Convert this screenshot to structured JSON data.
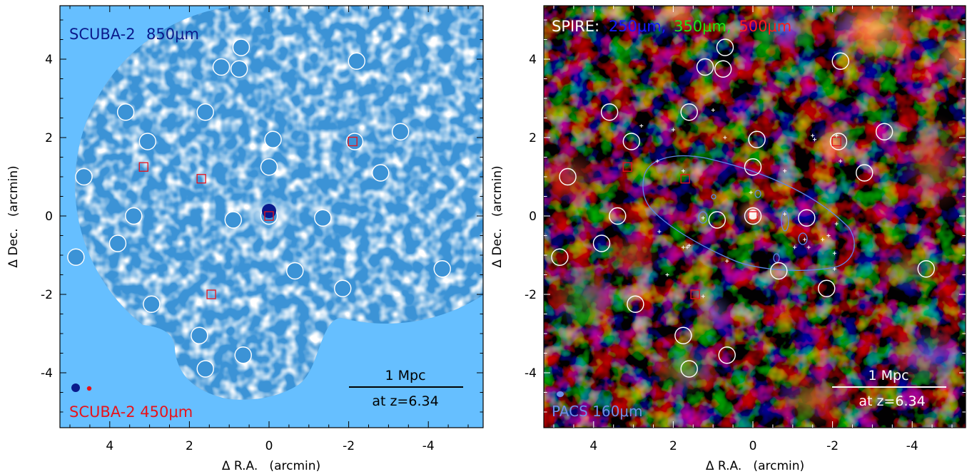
{
  "left_panel": {
    "title_instrument": "SCUBA-2",
    "title_band": "850μm",
    "bottom_label": "SCUBA-2 450μm",
    "scale_bar_top": "1 Mpc",
    "scale_bar_bottom": "at z=6.34",
    "x_axis_label": "Δ R.A.   (arcmin)",
    "y_axis_label": "Δ Dec.   (arcmin)",
    "x_ticks": [
      "4",
      "2",
      "0",
      "-2",
      "-4"
    ],
    "y_ticks": [
      "4",
      "2",
      "0",
      "-2",
      "-4"
    ],
    "colors": {
      "map_bg": "#66bfff",
      "title": "#0a1a8c",
      "bottom_label": "#e8121a",
      "markers": "#e8121a"
    }
  },
  "right_panel": {
    "title_prefix": "SPIRE:",
    "band_blue": "250μm,",
    "band_green": "350μm,",
    "band_red": "500μm",
    "bottom_label": "PACS 160μm",
    "scale_bar_top": "1 Mpc",
    "scale_bar_bottom": "at z=6.34",
    "x_axis_label": "Δ R.A.   (arcmin)",
    "y_axis_label": "Δ Dec.   (arcmin)",
    "x_ticks": [
      "4",
      "2",
      "0",
      "-2",
      "-4"
    ],
    "y_ticks": [
      "4",
      "2",
      "0",
      "-2",
      "-4"
    ],
    "colors": {
      "background": "#120c10",
      "band_blue": "#1818ff",
      "band_green": "#19e619",
      "band_red": "#ff1a1a",
      "contour": "#5f86e8",
      "pacs_label": "#6f8fe8"
    }
  },
  "sources": [
    [
      0.0,
      0.0
    ],
    [
      0.7,
      4.3
    ],
    [
      0.75,
      3.75
    ],
    [
      1.2,
      3.8
    ],
    [
      -2.2,
      3.95
    ],
    [
      3.6,
      2.65
    ],
    [
      1.6,
      2.65
    ],
    [
      3.05,
      1.9
    ],
    [
      -0.1,
      1.95
    ],
    [
      -2.15,
      1.9
    ],
    [
      -3.3,
      2.15
    ],
    [
      0.0,
      1.25
    ],
    [
      -2.8,
      1.1
    ],
    [
      4.65,
      1.0
    ],
    [
      3.4,
      0.0
    ],
    [
      0.9,
      -0.1
    ],
    [
      -1.35,
      -0.05
    ],
    [
      3.8,
      -0.7
    ],
    [
      4.85,
      -1.05
    ],
    [
      -0.65,
      -1.4
    ],
    [
      -1.85,
      -1.85
    ],
    [
      -4.35,
      -1.35
    ],
    [
      2.95,
      -2.25
    ],
    [
      1.75,
      -3.05
    ],
    [
      0.65,
      -3.55
    ],
    [
      1.6,
      -3.9
    ]
  ],
  "red_squares": [
    [
      3.15,
      1.25
    ],
    [
      1.7,
      0.95
    ],
    [
      -2.1,
      1.9
    ],
    [
      0.0,
      0.0
    ],
    [
      1.45,
      -2.0
    ]
  ]
}
